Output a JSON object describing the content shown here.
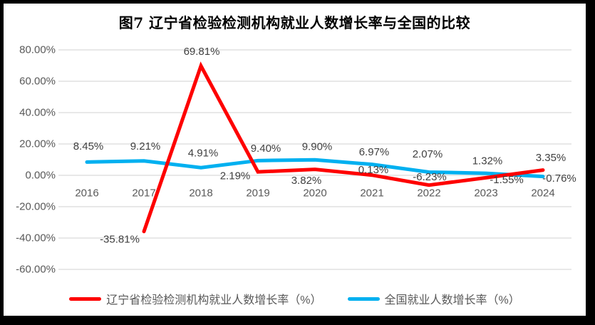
{
  "chart_data": {
    "type": "line",
    "title": "图7  辽宁省检验检测机构就业人数增长率与全国的比较",
    "categories": [
      "2016",
      "2017",
      "2018",
      "2019",
      "2020",
      "2021",
      "2022",
      "2023",
      "2024"
    ],
    "series": [
      {
        "name": "辽宁省检验检测机构就业人数增长率（%）",
        "color": "#FE0000",
        "values": [
          null,
          -35.81,
          69.81,
          2.19,
          3.82,
          0.13,
          -6.23,
          -1.55,
          3.35
        ],
        "labels": [
          "",
          "-35.81%",
          "69.81%",
          "2.19%",
          "3.82%",
          "0.13%",
          "-6.23%",
          "-1.55%",
          "3.35%"
        ],
        "label_offsets": [
          [
            0,
            0
          ],
          [
            -34,
            11
          ],
          [
            1,
            -20
          ],
          [
            -32,
            6
          ],
          [
            -12,
            16
          ],
          [
            2,
            -7
          ],
          [
            1,
            -11
          ],
          [
            29,
            3
          ],
          [
            11,
            -17
          ]
        ]
      },
      {
        "name": "全国就业人数增长率（%）",
        "color": "#00B0F0",
        "values": [
          8.45,
          9.21,
          4.91,
          9.4,
          9.9,
          6.97,
          2.07,
          1.32,
          -0.76
        ],
        "labels": [
          "8.45%",
          "9.21%",
          "4.91%",
          "9.40%",
          "9.90%",
          "6.97%",
          "2.07%",
          "1.32%",
          "-0.76%"
        ],
        "label_offsets": [
          [
            2,
            -22
          ],
          [
            2,
            -20
          ],
          [
            3,
            -20
          ],
          [
            11,
            -17
          ],
          [
            3,
            -18
          ],
          [
            3,
            -17
          ],
          [
            -2,
            -25
          ],
          [
            2,
            -17
          ],
          [
            23,
            3
          ]
        ]
      }
    ],
    "y_axis": {
      "min": -60,
      "max": 80,
      "step": 20,
      "tick_labels": [
        "80.00%",
        "60.00%",
        "40.00%",
        "20.00%",
        "0.00%",
        "-20.00%",
        "-40.00%",
        "-60.00%"
      ]
    },
    "x_axis": {
      "labels": [
        "2016",
        "2017",
        "2018",
        "2019",
        "2020",
        "2021",
        "2022",
        "2023",
        "2024"
      ]
    },
    "grid": true,
    "legend_position": "bottom",
    "colors": {
      "gridline": "#D9D9D9",
      "axis_text": "#595959",
      "data_label": "#404040",
      "legend_text": "#595959",
      "background": "#FFFFFF",
      "frame": "#000000"
    }
  }
}
